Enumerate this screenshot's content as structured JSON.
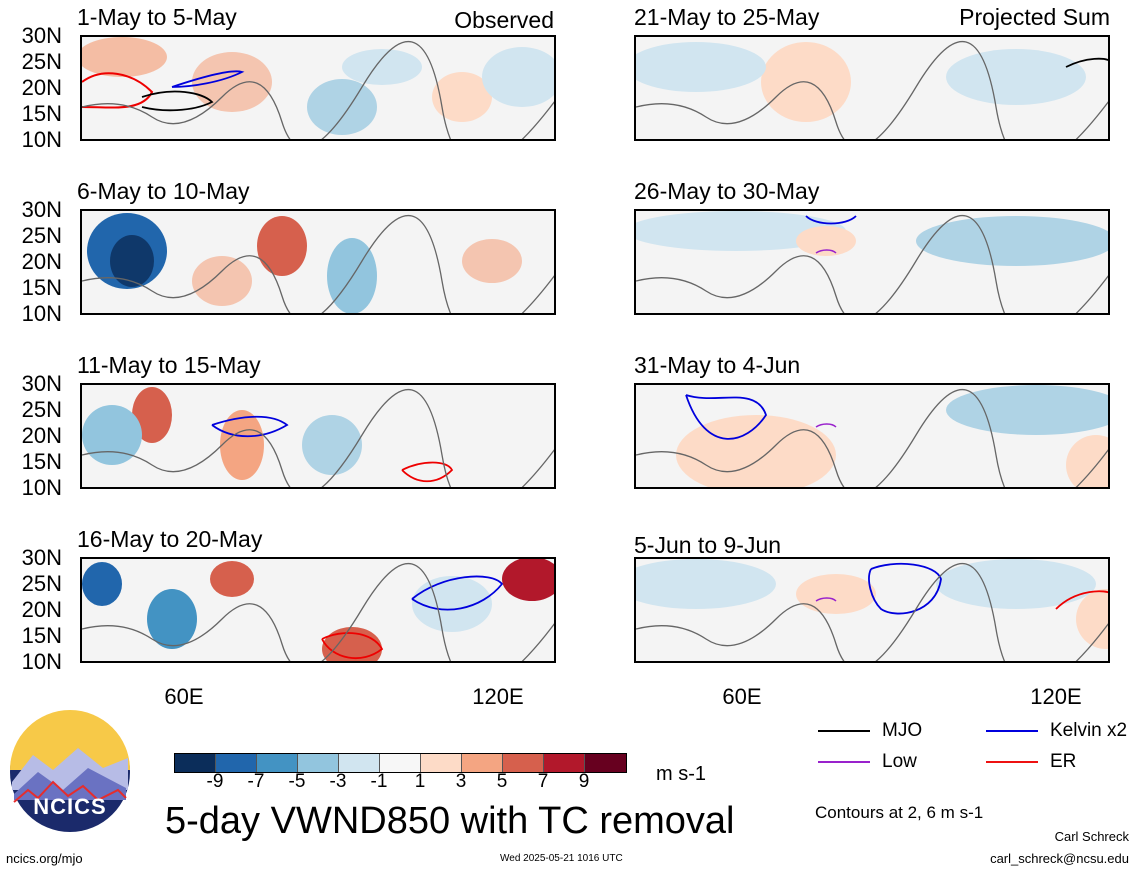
{
  "observed_label": "Observed",
  "projected_label": "Projected Sum",
  "panels_left": [
    {
      "title": "1-May to 5-May"
    },
    {
      "title": "6-May to 10-May"
    },
    {
      "title": "11-May to 15-May"
    },
    {
      "title": "16-May to 20-May"
    }
  ],
  "panels_right": [
    {
      "title": "21-May to 25-May"
    },
    {
      "title": "26-May to 30-May"
    },
    {
      "title": "31-May to 4-Jun"
    },
    {
      "title": "5-Jun to 9-Jun"
    }
  ],
  "lat_labels": [
    "30N",
    "25N",
    "20N",
    "15N",
    "10N"
  ],
  "lon_labels": [
    "60E",
    "120E"
  ],
  "colorbar": {
    "colors": [
      "#0b2d5a",
      "#2166ac",
      "#4393c3",
      "#92c5de",
      "#d1e5f0",
      "#f7f7f7",
      "#fddbc7",
      "#f4a582",
      "#d6604d",
      "#b2182b",
      "#67001f"
    ],
    "ticks": [
      "-9",
      "-7",
      "-5",
      "-3",
      "-1",
      "1",
      "3",
      "5",
      "7",
      "9"
    ],
    "units": "m s-1"
  },
  "legend": {
    "items": [
      {
        "label": "MJO",
        "color": "#000000"
      },
      {
        "label": "Kelvin x2",
        "color": "#0000dd"
      },
      {
        "label": "Low",
        "color": "#9922cc"
      },
      {
        "label": "ER",
        "color": "#ee1111"
      }
    ],
    "contours_note": "Contours at 2, 6 m s-1"
  },
  "main_title": "5-day VWND850 with TC removal",
  "logo_text": "NCICS",
  "footer": {
    "url": "ncics.org/mjo",
    "timestamp": "Wed 2025-05-21 1016 UTC",
    "author": "Carl Schreck",
    "email": "carl_schreck@ncsu.edu"
  }
}
